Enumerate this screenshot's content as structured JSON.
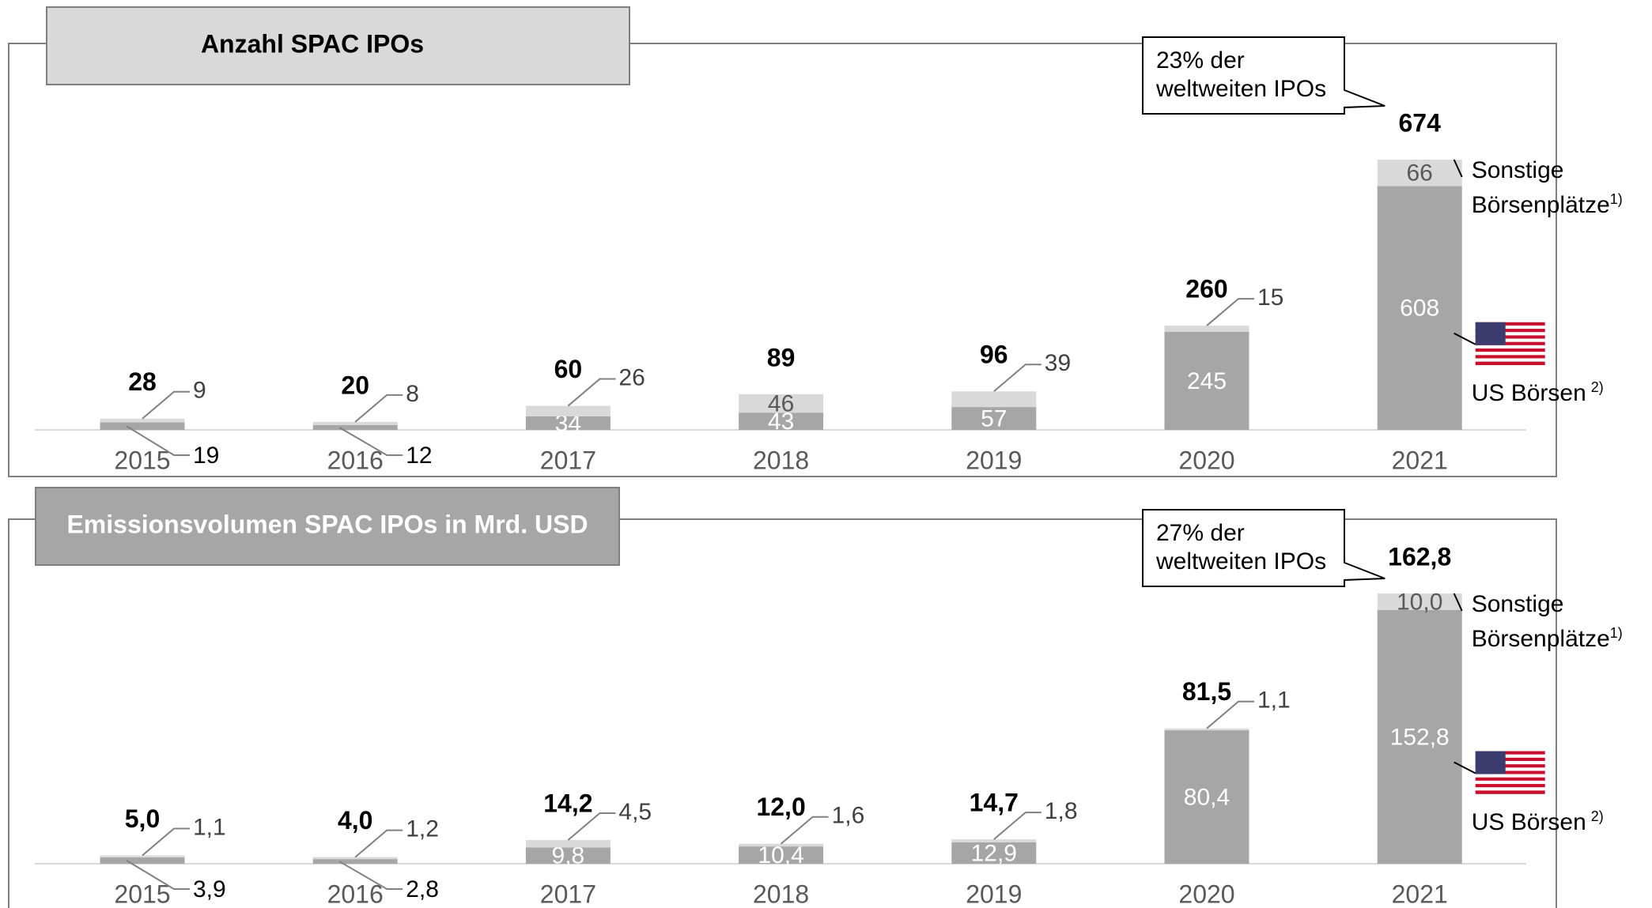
{
  "chart_data": [
    {
      "type": "stacked-bar",
      "title": "Anzahl SPAC IPOs",
      "categories": [
        "2015",
        "2016",
        "2017",
        "2018",
        "2019",
        "2020",
        "2021"
      ],
      "series": [
        {
          "name": "US Börsen",
          "footnote": "2)",
          "color": "#a6a6a6",
          "values": [
            19,
            12,
            34,
            43,
            57,
            245,
            608
          ]
        },
        {
          "name": "Sonstige Börsenplätze",
          "footnote": "1)",
          "color": "#d9d9d9",
          "values": [
            9,
            8,
            26,
            46,
            39,
            15,
            66
          ]
        }
      ],
      "totals": [
        28,
        20,
        60,
        89,
        96,
        260,
        674
      ],
      "annotation": "23% der weltweiten IPOs"
    },
    {
      "type": "stacked-bar",
      "title": "Emissionsvolumen SPAC IPOs in Mrd. USD",
      "categories": [
        "2015",
        "2016",
        "2017",
        "2018",
        "2019",
        "2020",
        "2021"
      ],
      "series": [
        {
          "name": "US Börsen",
          "footnote": "2)",
          "color": "#a6a6a6",
          "values": [
            3.9,
            2.8,
            9.8,
            10.4,
            12.9,
            80.4,
            152.8
          ],
          "value_labels": [
            "3,9",
            "2,8",
            "9,8",
            "10,4",
            "12,9",
            "80,4",
            "152,8"
          ]
        },
        {
          "name": "Sonstige Börsenplätze",
          "footnote": "1)",
          "color": "#d9d9d9",
          "values": [
            1.1,
            1.2,
            4.5,
            1.6,
            1.8,
            1.1,
            10.0
          ],
          "value_labels": [
            "1,1",
            "1,2",
            "4,5",
            "1,6",
            "1,8",
            "1,1",
            "10,0"
          ]
        }
      ],
      "totals": [
        5.0,
        4.0,
        14.2,
        12.0,
        14.7,
        81.5,
        162.8
      ],
      "total_labels": [
        "5,0",
        "4,0",
        "14,2",
        "12,0",
        "14,7",
        "81,5",
        "162,8"
      ],
      "annotation": "27% der weltweiten IPOs"
    }
  ]
}
